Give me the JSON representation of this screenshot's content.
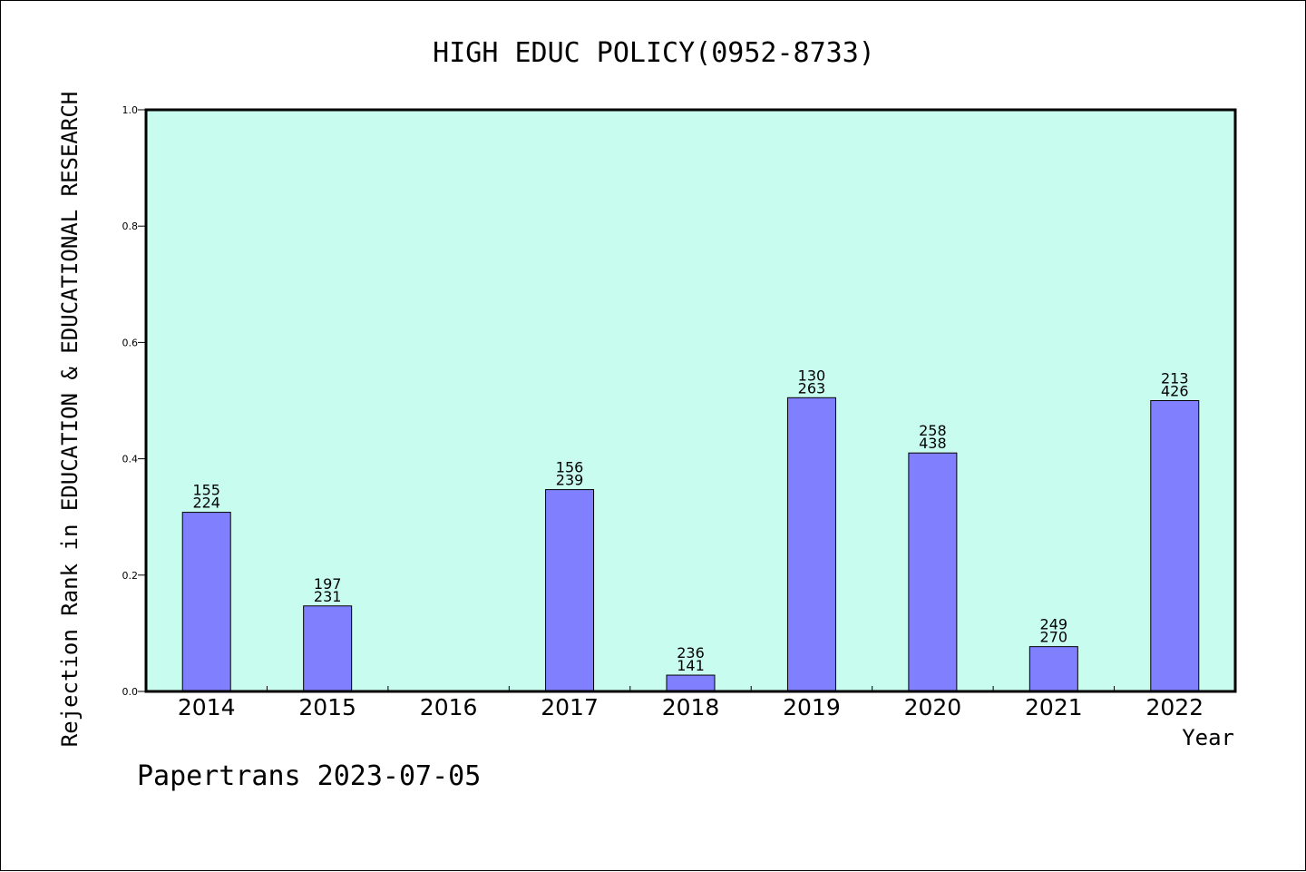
{
  "chart_data": {
    "type": "bar",
    "title": "HIGH EDUC POLICY(0952-8733)",
    "xlabel": "Year",
    "ylabel": "Rejection Rank in EDUCATION & EDUCATIONAL RESEARCH",
    "categories": [
      "2014",
      "2015",
      "2016",
      "2017",
      "2018",
      "2019",
      "2020",
      "2021",
      "2022"
    ],
    "values": [
      0.308,
      0.147,
      null,
      0.347,
      0.028,
      0.505,
      0.41,
      0.077,
      0.5
    ],
    "bar_labels": [
      [
        "155",
        "224"
      ],
      [
        "197",
        "231"
      ],
      null,
      [
        "156",
        "239"
      ],
      [
        "236",
        "141"
      ],
      [
        "130",
        "263"
      ],
      [
        "258",
        "438"
      ],
      [
        "249",
        "270"
      ],
      [
        "213",
        "426"
      ]
    ],
    "ylim": [
      0,
      1.0
    ],
    "yticks": [
      "0.0",
      "0.2",
      "0.4",
      "0.6",
      "0.8",
      "1.0"
    ],
    "grid": false,
    "colors": {
      "plot_background": "#c8fcee",
      "bar_fill": "#8080ff",
      "bar_stroke": "#000000"
    }
  },
  "footer": {
    "text": "Papertrans 2023-07-05"
  }
}
